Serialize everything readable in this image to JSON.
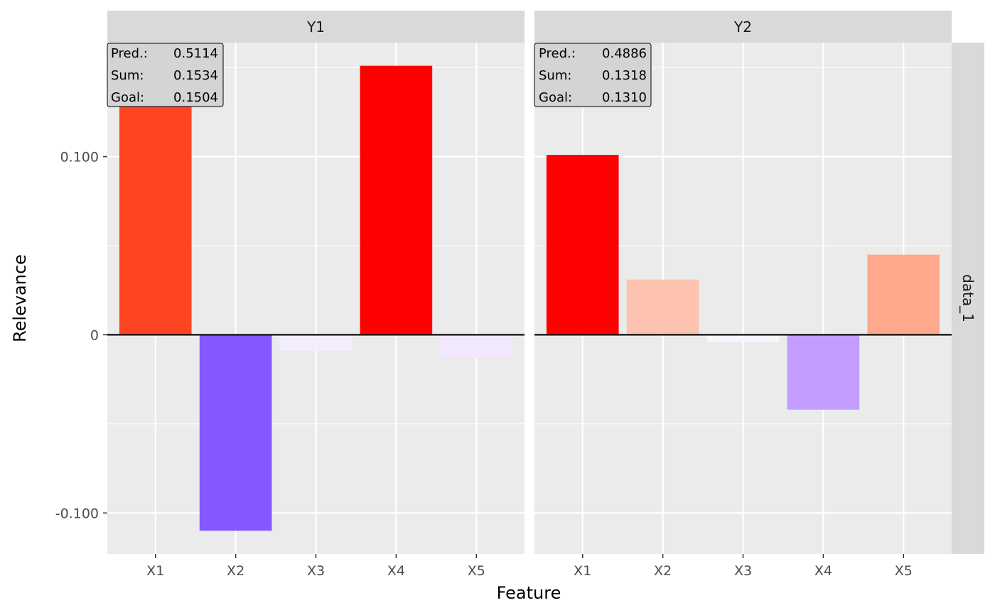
{
  "chart_data": {
    "type": "bar",
    "xlabel": "Feature",
    "ylabel": "Relevance",
    "categories": [
      "X1",
      "X2",
      "X3",
      "X4",
      "X5"
    ],
    "ylim": [
      -0.123,
      0.164
    ],
    "y_ticks": [
      -0.1,
      0,
      0.1
    ],
    "y_tick_labels": [
      "-0.100",
      "0",
      "0.100"
    ],
    "row_strip": "data_1",
    "grid": true,
    "facets": [
      {
        "name": "Y1",
        "values": [
          0.135,
          -0.11,
          -0.009,
          0.151,
          -0.013
        ],
        "colors": [
          "#ff4422",
          "#8457ff",
          "#f3edff",
          "#ff0000",
          "#f1e8ff"
        ],
        "annotation": [
          {
            "label": "Pred.:",
            "value": "0.5114"
          },
          {
            "label": "Sum:",
            "value": "0.1534"
          },
          {
            "label": "Goal:",
            "value": "0.1504"
          }
        ]
      },
      {
        "name": "Y2",
        "values": [
          0.101,
          0.031,
          -0.004,
          -0.042,
          0.045
        ],
        "colors": [
          "#ff0000",
          "#fec3b0",
          "#fbf4ff",
          "#c29cff",
          "#ffa88c"
        ],
        "annotation": [
          {
            "label": "Pred.:",
            "value": "0.4886"
          },
          {
            "label": "Sum:",
            "value": "0.1318"
          },
          {
            "label": "Goal:",
            "value": "0.1310"
          }
        ]
      }
    ]
  }
}
